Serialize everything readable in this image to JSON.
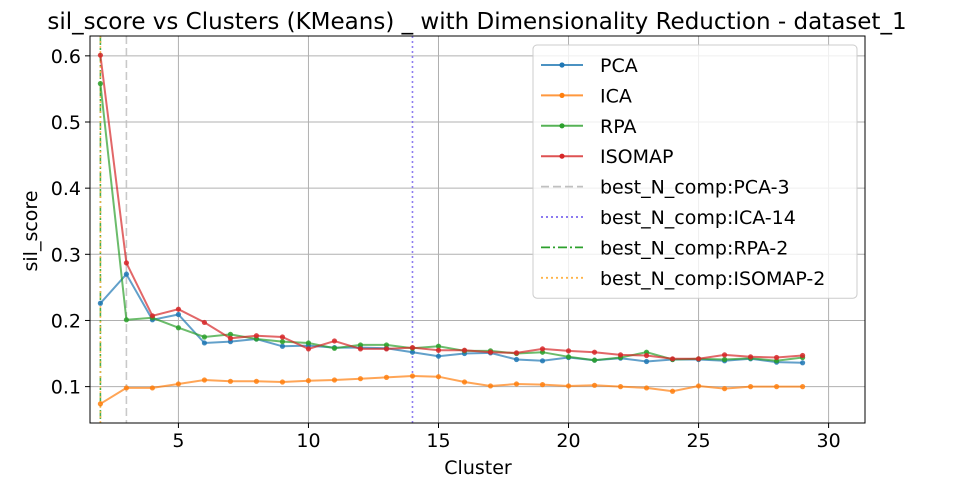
{
  "chart_data": {
    "type": "line",
    "title": "sil_score vs Clusters (KMeans) _ with Dimensionality Reduction - dataset_1",
    "xlabel": "Cluster",
    "ylabel": "sil_score",
    "xlim": [
      1.6,
      31.4
    ],
    "ylim": [
      0.045,
      0.63
    ],
    "xticks": [
      5,
      10,
      15,
      20,
      25,
      30
    ],
    "yticks": [
      0.1,
      0.2,
      0.3,
      0.4,
      0.5,
      0.6
    ],
    "grid": true,
    "legend_position": "top-right",
    "x": [
      2,
      3,
      4,
      5,
      6,
      7,
      8,
      9,
      10,
      11,
      12,
      13,
      14,
      15,
      16,
      17,
      18,
      19,
      20,
      21,
      22,
      23,
      24,
      25,
      26,
      27,
      28,
      29
    ],
    "series": [
      {
        "name": "PCA",
        "color": "#1f77b4",
        "values": [
          0.226,
          0.27,
          0.201,
          0.209,
          0.166,
          0.168,
          0.172,
          0.161,
          0.162,
          0.159,
          0.159,
          0.158,
          0.152,
          0.146,
          0.15,
          0.151,
          0.141,
          0.139,
          0.144,
          0.14,
          0.143,
          0.138,
          0.141,
          0.141,
          0.139,
          0.142,
          0.137,
          0.136
        ]
      },
      {
        "name": "ICA",
        "color": "#ff7f0e",
        "values": [
          0.074,
          0.098,
          0.098,
          0.104,
          0.11,
          0.108,
          0.108,
          0.107,
          0.109,
          0.11,
          0.112,
          0.114,
          0.116,
          0.115,
          0.107,
          0.101,
          0.104,
          0.103,
          0.101,
          0.102,
          0.1,
          0.098,
          0.093,
          0.101,
          0.097,
          0.1,
          0.1,
          0.1
        ]
      },
      {
        "name": "RPA",
        "color": "#2ca02c",
        "values": [
          0.558,
          0.201,
          0.204,
          0.189,
          0.175,
          0.179,
          0.172,
          0.168,
          0.166,
          0.158,
          0.163,
          0.163,
          0.158,
          0.161,
          0.154,
          0.154,
          0.15,
          0.152,
          0.145,
          0.14,
          0.144,
          0.152,
          0.141,
          0.142,
          0.141,
          0.143,
          0.139,
          0.144
        ]
      },
      {
        "name": "ISOMAP",
        "color": "#d62728",
        "values": [
          0.601,
          0.287,
          0.207,
          0.217,
          0.197,
          0.173,
          0.177,
          0.175,
          0.157,
          0.169,
          0.157,
          0.157,
          0.159,
          0.155,
          0.155,
          0.152,
          0.151,
          0.157,
          0.154,
          0.152,
          0.148,
          0.147,
          0.142,
          0.142,
          0.148,
          0.145,
          0.144,
          0.147
        ]
      }
    ],
    "vlines": [
      {
        "name": "best_N_comp:PCA-3",
        "x": 3,
        "color": "#c0c0c0",
        "style": "dashed"
      },
      {
        "name": "best_N_comp:ICA-14",
        "x": 14,
        "color": "#7b68ee",
        "style": "dotted"
      },
      {
        "name": "best_N_comp:RPA-2",
        "x": 2,
        "color": "#2ca02c",
        "style": "dashdot"
      },
      {
        "name": "best_N_comp:ISOMAP-2",
        "x": 2,
        "color": "#ffb347",
        "style": "dotted"
      }
    ]
  }
}
